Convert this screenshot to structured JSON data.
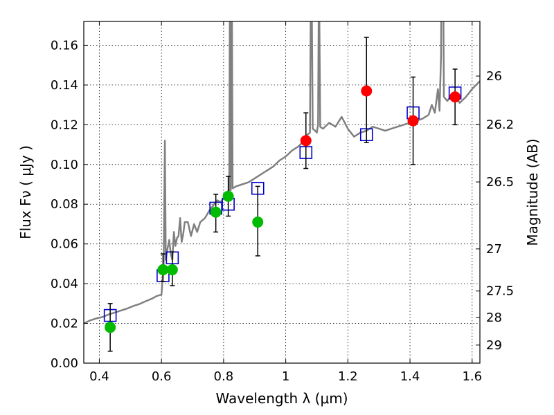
{
  "chart_data": {
    "type": "scatter",
    "xlabel": "Wavelength  λ (μm)",
    "ylabel": "Flux  Fν  ( μJy )",
    "ylabel_right": "Magnitude (AB)",
    "xlim": [
      0.35,
      1.625
    ],
    "ylim": [
      0.0,
      0.172
    ],
    "grid": true,
    "x_ticks": [
      0.4,
      0.6,
      0.8,
      1.0,
      1.2,
      1.4,
      1.6
    ],
    "x_tick_labels": [
      "0.4",
      "0.6",
      "0.8",
      "1",
      "1.2",
      "1.4",
      "1.6"
    ],
    "y_ticks": [
      0.0,
      0.02,
      0.04,
      0.06,
      0.08,
      0.1,
      0.12,
      0.14,
      0.16
    ],
    "y_tick_labels": [
      "0.00",
      "0.02",
      "0.04",
      "0.06",
      "0.08",
      "0.10",
      "0.12",
      "0.14",
      "0.16"
    ],
    "right_ticks": [
      {
        "label": "26",
        "flux": 0.1445
      },
      {
        "label": "26.2",
        "flux": 0.1202
      },
      {
        "label": "26.5",
        "flux": 0.0912
      },
      {
        "label": "27",
        "flux": 0.0575
      },
      {
        "label": "27.5",
        "flux": 0.0363
      },
      {
        "label": "28",
        "flux": 0.0229
      },
      {
        "label": "29",
        "flux": 0.0091
      }
    ],
    "model_spectrum": {
      "color": "#808080",
      "points": [
        [
          0.35,
          0.02
        ],
        [
          0.37,
          0.0215
        ],
        [
          0.39,
          0.0225
        ],
        [
          0.41,
          0.0232
        ],
        [
          0.43,
          0.0245
        ],
        [
          0.45,
          0.0255
        ],
        [
          0.47,
          0.0265
        ],
        [
          0.49,
          0.0275
        ],
        [
          0.51,
          0.0288
        ],
        [
          0.53,
          0.0298
        ],
        [
          0.55,
          0.0312
        ],
        [
          0.57,
          0.0325
        ],
        [
          0.585,
          0.0338
        ],
        [
          0.6,
          0.0345
        ],
        [
          0.603,
          0.041
        ],
        [
          0.607,
          0.048
        ],
        [
          0.611,
          0.112
        ],
        [
          0.614,
          0.052
        ],
        [
          0.62,
          0.058
        ],
        [
          0.625,
          0.062
        ],
        [
          0.63,
          0.055
        ],
        [
          0.635,
          0.052
        ],
        [
          0.64,
          0.066
        ],
        [
          0.645,
          0.059
        ],
        [
          0.65,
          0.063
        ],
        [
          0.655,
          0.064
        ],
        [
          0.66,
          0.073
        ],
        [
          0.665,
          0.061
        ],
        [
          0.67,
          0.065
        ],
        [
          0.675,
          0.071
        ],
        [
          0.685,
          0.071
        ],
        [
          0.695,
          0.064
        ],
        [
          0.705,
          0.07
        ],
        [
          0.715,
          0.066
        ],
        [
          0.725,
          0.071
        ],
        [
          0.74,
          0.073
        ],
        [
          0.755,
          0.077
        ],
        [
          0.77,
          0.08
        ],
        [
          0.78,
          0.082
        ],
        [
          0.79,
          0.081
        ],
        [
          0.8,
          0.083
        ],
        [
          0.81,
          0.086
        ],
        [
          0.818,
          0.087
        ],
        [
          0.821,
          0.22
        ],
        [
          0.823,
          0.087
        ],
        [
          0.826,
          0.22
        ],
        [
          0.829,
          0.088
        ],
        [
          0.84,
          0.089
        ],
        [
          0.86,
          0.09
        ],
        [
          0.88,
          0.091
        ],
        [
          0.9,
          0.093
        ],
        [
          0.92,
          0.095
        ],
        [
          0.94,
          0.097
        ],
        [
          0.96,
          0.099
        ],
        [
          0.98,
          0.102
        ],
        [
          1.0,
          0.104
        ],
        [
          1.02,
          0.107
        ],
        [
          1.04,
          0.109
        ],
        [
          1.06,
          0.112
        ],
        [
          1.07,
          0.115
        ],
        [
          1.078,
          0.116
        ],
        [
          1.082,
          0.22
        ],
        [
          1.087,
          0.118
        ],
        [
          1.095,
          0.117
        ],
        [
          1.1,
          0.116
        ],
        [
          1.104,
          0.12
        ],
        [
          1.107,
          0.2
        ],
        [
          1.111,
          0.119
        ],
        [
          1.12,
          0.118
        ],
        [
          1.14,
          0.121
        ],
        [
          1.16,
          0.119
        ],
        [
          1.18,
          0.124
        ],
        [
          1.2,
          0.118
        ],
        [
          1.22,
          0.114
        ],
        [
          1.24,
          0.116
        ],
        [
          1.26,
          0.117
        ],
        [
          1.28,
          0.119
        ],
        [
          1.3,
          0.118
        ],
        [
          1.32,
          0.117
        ],
        [
          1.34,
          0.118
        ],
        [
          1.36,
          0.119
        ],
        [
          1.38,
          0.12
        ],
        [
          1.4,
          0.121
        ],
        [
          1.42,
          0.122
        ],
        [
          1.44,
          0.123
        ],
        [
          1.46,
          0.125
        ],
        [
          1.47,
          0.13
        ],
        [
          1.48,
          0.126
        ],
        [
          1.49,
          0.138
        ],
        [
          1.495,
          0.127
        ],
        [
          1.5,
          0.155
        ],
        [
          1.502,
          0.22
        ],
        [
          1.506,
          0.22
        ],
        [
          1.509,
          0.134
        ],
        [
          1.52,
          0.132
        ],
        [
          1.54,
          0.136
        ],
        [
          1.56,
          0.131
        ],
        [
          1.58,
          0.134
        ],
        [
          1.6,
          0.138
        ],
        [
          1.625,
          0.142
        ]
      ]
    },
    "model_photometry": {
      "marker": "open-square",
      "color": "#0000cc",
      "x": [
        0.435,
        0.605,
        0.635,
        0.775,
        0.815,
        0.91,
        1.065,
        1.26,
        1.41,
        1.545
      ],
      "y": [
        0.024,
        0.044,
        0.053,
        0.078,
        0.08,
        0.088,
        0.106,
        0.115,
        0.126,
        0.136
      ]
    },
    "observed_optical": {
      "marker": "filled-circle",
      "color": "#00bb00",
      "x": [
        0.435,
        0.605,
        0.635,
        0.775,
        0.815,
        0.91
      ],
      "y": [
        0.018,
        0.047,
        0.047,
        0.076,
        0.084,
        0.071
      ],
      "err_low": [
        0.006,
        0.041,
        0.039,
        0.066,
        0.074,
        0.054
      ],
      "err_high": [
        0.03,
        0.055,
        0.056,
        0.085,
        0.094,
        0.089
      ]
    },
    "observed_nir": {
      "marker": "filled-circle",
      "color": "#ff0000",
      "x": [
        1.065,
        1.26,
        1.41,
        1.545
      ],
      "y": [
        0.112,
        0.137,
        0.122,
        0.134
      ],
      "err_low": [
        0.098,
        0.111,
        0.1,
        0.12
      ],
      "err_high": [
        0.126,
        0.164,
        0.144,
        0.148
      ]
    }
  }
}
